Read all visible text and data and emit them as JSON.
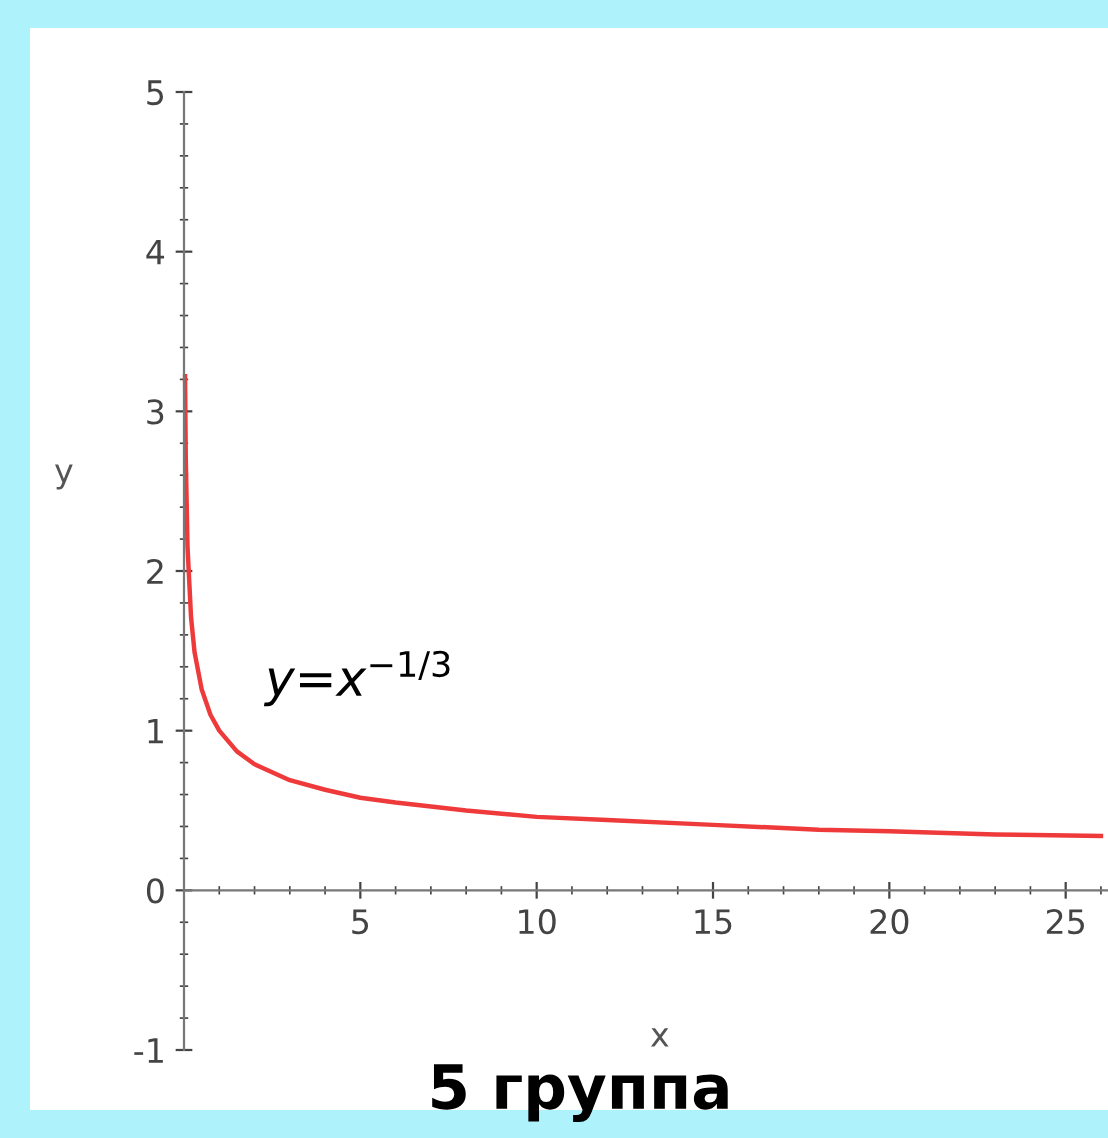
{
  "chart_data": {
    "type": "line",
    "xlabel": "x",
    "ylabel": "y",
    "x": [
      0.03,
      0.05,
      0.1,
      0.2,
      0.3,
      0.5,
      0.75,
      1,
      1.5,
      2,
      3,
      4,
      5,
      6,
      8,
      10,
      12,
      15,
      18,
      20,
      23,
      26
    ],
    "series": [
      {
        "name": "y=x$^{−1/3}$",
        "color": "#ee3a3a",
        "values": [
          3.22,
          2.71,
          2.15,
          1.71,
          1.49,
          1.26,
          1.1,
          1.0,
          0.87,
          0.79,
          0.69,
          0.63,
          0.58,
          0.55,
          0.5,
          0.46,
          0.44,
          0.41,
          0.38,
          0.37,
          0.35,
          0.34
        ]
      }
    ],
    "xlim": [
      0,
      26.2
    ],
    "ylim": [
      -1,
      5
    ],
    "xticks": [
      5,
      10,
      15,
      20,
      25
    ],
    "yticks": [
      -1,
      0,
      1,
      2,
      3,
      4,
      5
    ],
    "grid": false,
    "legend": false,
    "marker": "none",
    "line_style": "solid",
    "annotations": [
      "5 группа"
    ]
  }
}
